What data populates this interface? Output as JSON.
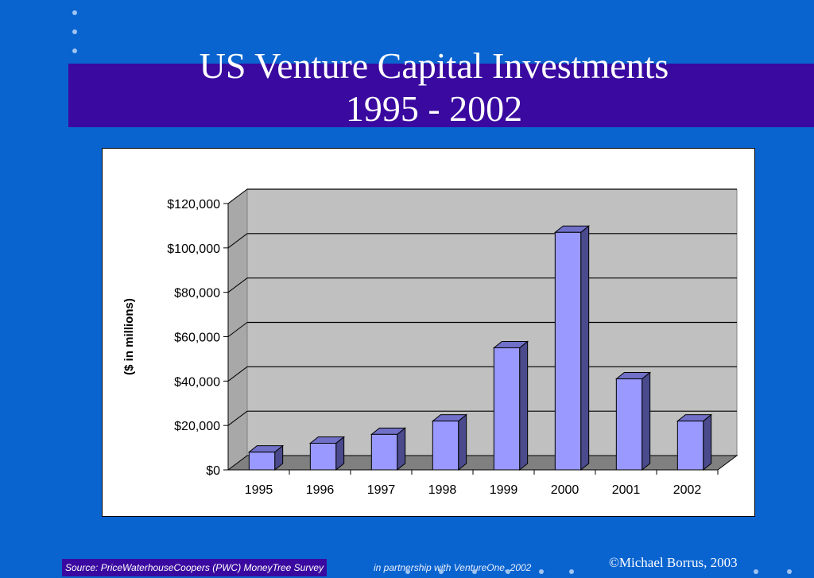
{
  "slide": {
    "title_line1": "US Venture Capital Investments",
    "title_line2": "1995 - 2002",
    "source": "Source: PriceWaterhouseCoopers (PWC) MoneyTree Survey",
    "source_continued": "in partnership with VentureOne, 2002",
    "copyright": "©Michael Borrus, 2003"
  },
  "colors": {
    "background": "#0a64d0",
    "title_band": "#3a0aa0",
    "bar_front": "#9999ff",
    "bar_side": "#4a4a8c",
    "bar_top": "#7070c8",
    "plot_back": "#c0c0c0",
    "floor": "#808080"
  },
  "chart_data": {
    "type": "bar",
    "title": "",
    "xlabel": "",
    "ylabel": "($ in millions)",
    "categories": [
      "1995",
      "1996",
      "1997",
      "1998",
      "1999",
      "2000",
      "2001",
      "2002"
    ],
    "values": [
      8000,
      12000,
      16000,
      22000,
      55000,
      107000,
      41000,
      22000
    ],
    "ylim": [
      0,
      120000
    ],
    "yticks": [
      0,
      20000,
      40000,
      60000,
      80000,
      100000,
      120000
    ],
    "ytick_labels": [
      "$0",
      "$20,000",
      "$40,000",
      "$60,000",
      "$80,000",
      "$100,000",
      "$120,000"
    ],
    "grid": true,
    "legend": "none",
    "style": "3d"
  }
}
